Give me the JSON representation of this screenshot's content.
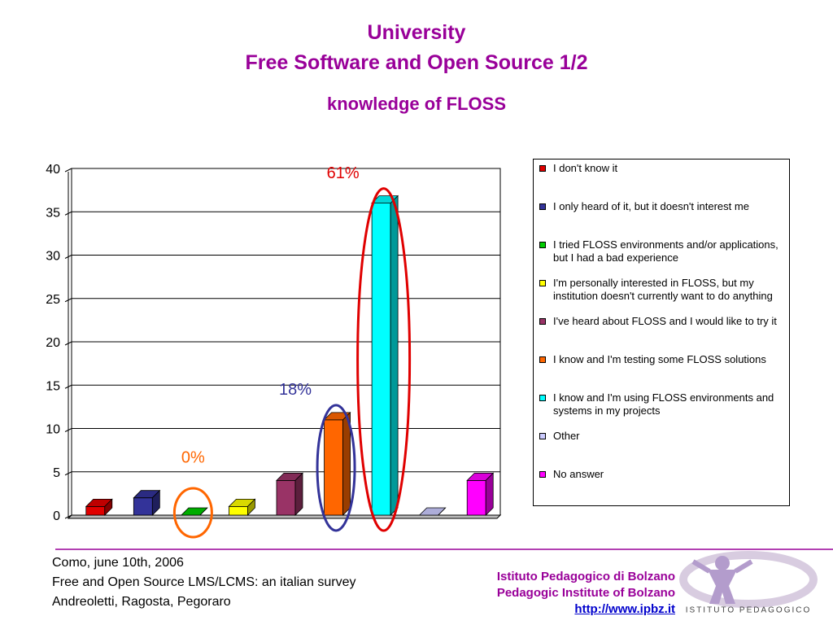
{
  "chart_data": {
    "type": "bar",
    "title": "University",
    "subtitle": "Free Software and Open Source 1/2",
    "chart_title": "knowledge of FLOSS",
    "series": [
      {
        "name": "I don't know it",
        "color": "#e00000",
        "values": [
          1
        ]
      },
      {
        "name": "I only heard of it, but it doesn't interest me",
        "color": "#333399",
        "values": [
          2
        ]
      },
      {
        "name": "I tried FLOSS environments and/or applications, but I had a bad experience",
        "color": "#00cc00",
        "values": [
          0
        ]
      },
      {
        "name": "I'm personally interested in FLOSS, but my institution doesn't currently want to do anything",
        "color": "#ffff00",
        "values": [
          1
        ]
      },
      {
        "name": "I've heard about FLOSS and I would like to try it",
        "color": "#993366",
        "values": [
          4
        ]
      },
      {
        "name": "I know and I'm testing some FLOSS solutions",
        "color": "#ff6600",
        "values": [
          11
        ]
      },
      {
        "name": "I know and I'm using FLOSS environments and systems in my projects",
        "color": "#00ffff",
        "values": [
          36
        ]
      },
      {
        "name": "Other",
        "color": "#ccccff",
        "values": [
          0
        ]
      },
      {
        "name": "No answer",
        "color": "#ff00ff",
        "values": [
          4
        ]
      }
    ],
    "ylim": [
      0,
      40
    ],
    "yticks": [
      0,
      5,
      10,
      15,
      20,
      25,
      30,
      35,
      40
    ],
    "grid": true,
    "annotations": [
      {
        "text": "0%",
        "color": "#ff6600"
      },
      {
        "text": "18%",
        "color": "#333399"
      },
      {
        "text": "61%",
        "color": "#e00000"
      }
    ]
  },
  "footer": {
    "left": [
      "Como, june 10th, 2006",
      "Free and Open Source LMS/LCMS: an italian survey",
      "Andreoletti, Ragosta, Pegoraro"
    ],
    "institute": [
      "Istituto Pedagogico di Bolzano",
      "Pedagogic Institute of Bolzano",
      "http://www.ipbz.it"
    ],
    "logo_text": "ISTITUTO PEDAGOGICO"
  }
}
